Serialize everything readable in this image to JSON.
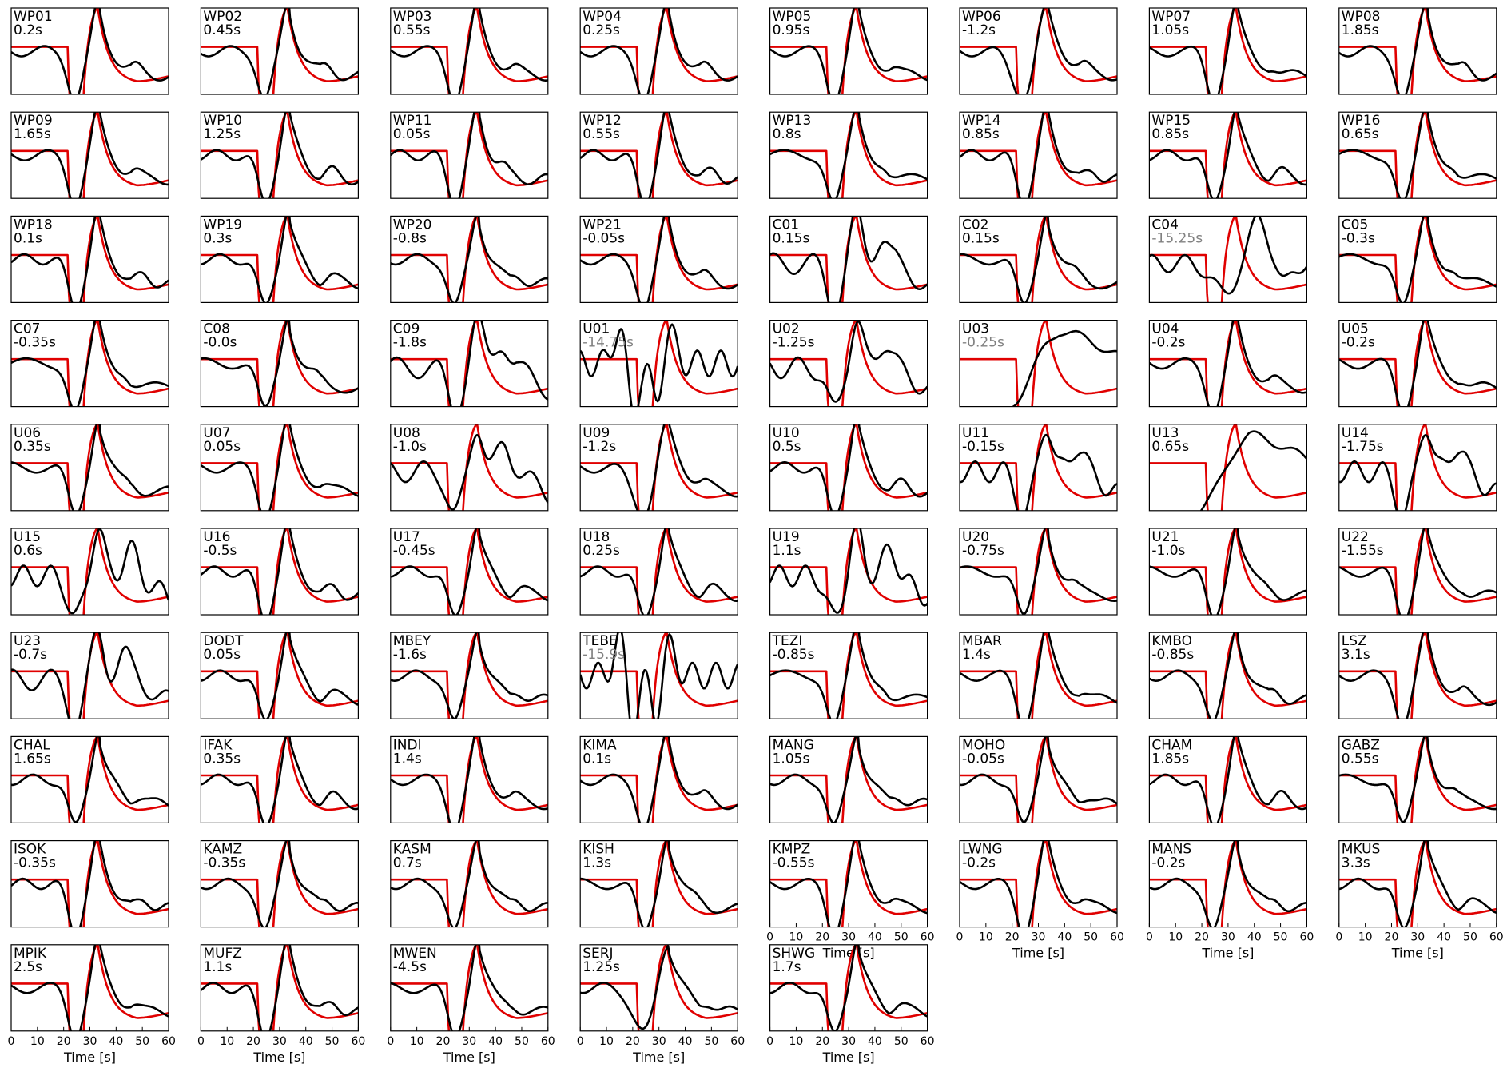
{
  "chart_data": {
    "type": "line",
    "xlabel": "Time [s]",
    "xlim": [
      0,
      60
    ],
    "xticks": [
      0,
      10,
      20,
      30,
      40,
      50,
      60
    ],
    "grid": false,
    "colors": {
      "reference": "#e00000",
      "observed": "#000000",
      "dim_shift": "#808080"
    },
    "panels": [
      {
        "station": "WP01",
        "shift": "0.2s",
        "dim": false,
        "shape": "good",
        "xaxis": false
      },
      {
        "station": "WP02",
        "shift": "0.45s",
        "dim": false,
        "shape": "good",
        "xaxis": false
      },
      {
        "station": "WP03",
        "shift": "0.55s",
        "dim": false,
        "shape": "good",
        "xaxis": false
      },
      {
        "station": "WP04",
        "shift": "0.25s",
        "dim": false,
        "shape": "good",
        "xaxis": false
      },
      {
        "station": "WP05",
        "shift": "0.95s",
        "dim": false,
        "shape": "good",
        "xaxis": false
      },
      {
        "station": "WP06",
        "shift": "-1.2s",
        "dim": false,
        "shape": "wide",
        "xaxis": false
      },
      {
        "station": "WP07",
        "shift": "1.05s",
        "dim": false,
        "shape": "good",
        "xaxis": false
      },
      {
        "station": "WP08",
        "shift": "1.85s",
        "dim": false,
        "shape": "good",
        "xaxis": false
      },
      {
        "station": "WP09",
        "shift": "1.65s",
        "dim": false,
        "shape": "good",
        "xaxis": false
      },
      {
        "station": "WP10",
        "shift": "1.25s",
        "dim": false,
        "shape": "good",
        "xaxis": false
      },
      {
        "station": "WP11",
        "shift": "0.05s",
        "dim": false,
        "shape": "good",
        "xaxis": false
      },
      {
        "station": "WP12",
        "shift": "0.55s",
        "dim": false,
        "shape": "good",
        "xaxis": false
      },
      {
        "station": "WP13",
        "shift": "0.8s",
        "dim": false,
        "shape": "good",
        "xaxis": false
      },
      {
        "station": "WP14",
        "shift": "0.85s",
        "dim": false,
        "shape": "good",
        "xaxis": false
      },
      {
        "station": "WP15",
        "shift": "0.85s",
        "dim": false,
        "shape": "good",
        "xaxis": false
      },
      {
        "station": "WP16",
        "shift": "0.65s",
        "dim": false,
        "shape": "good",
        "xaxis": false
      },
      {
        "station": "WP18",
        "shift": "0.1s",
        "dim": false,
        "shape": "good",
        "xaxis": false
      },
      {
        "station": "WP19",
        "shift": "0.3s",
        "dim": false,
        "shape": "good",
        "xaxis": false
      },
      {
        "station": "WP20",
        "shift": "-0.8s",
        "dim": false,
        "shape": "good",
        "xaxis": false
      },
      {
        "station": "WP21",
        "shift": "-0.05s",
        "dim": false,
        "shape": "good",
        "xaxis": false
      },
      {
        "station": "C01",
        "shift": "0.15s",
        "dim": false,
        "shape": "noisy",
        "xaxis": false
      },
      {
        "station": "C02",
        "shift": "0.15s",
        "dim": false,
        "shape": "good",
        "xaxis": false
      },
      {
        "station": "C04",
        "shift": "-15.25s",
        "dim": true,
        "shape": "late",
        "xaxis": false
      },
      {
        "station": "C05",
        "shift": "-0.3s",
        "dim": false,
        "shape": "good",
        "xaxis": false
      },
      {
        "station": "C07",
        "shift": "-0.35s",
        "dim": false,
        "shape": "good",
        "xaxis": false
      },
      {
        "station": "C08",
        "shift": "-0.0s",
        "dim": false,
        "shape": "good",
        "xaxis": false
      },
      {
        "station": "C09",
        "shift": "-1.8s",
        "dim": false,
        "shape": "noisy",
        "xaxis": false
      },
      {
        "station": "U01",
        "shift": "-14.75s",
        "dim": true,
        "shape": "early",
        "xaxis": false
      },
      {
        "station": "U02",
        "shift": "-1.25s",
        "dim": false,
        "shape": "noisy",
        "xaxis": false
      },
      {
        "station": "U03",
        "shift": "-0.25s",
        "dim": true,
        "shape": "ramp",
        "xaxis": false
      },
      {
        "station": "U04",
        "shift": "-0.2s",
        "dim": false,
        "shape": "good",
        "xaxis": false
      },
      {
        "station": "U05",
        "shift": "-0.2s",
        "dim": false,
        "shape": "good",
        "xaxis": false
      },
      {
        "station": "U06",
        "shift": "0.35s",
        "dim": false,
        "shape": "good",
        "xaxis": false
      },
      {
        "station": "U07",
        "shift": "0.05s",
        "dim": false,
        "shape": "good",
        "xaxis": false
      },
      {
        "station": "U08",
        "shift": "-1.0s",
        "dim": false,
        "shape": "noisy",
        "xaxis": false
      },
      {
        "station": "U09",
        "shift": "-1.2s",
        "dim": false,
        "shape": "wide",
        "xaxis": false
      },
      {
        "station": "U10",
        "shift": "0.5s",
        "dim": false,
        "shape": "good",
        "xaxis": false
      },
      {
        "station": "U11",
        "shift": "-0.15s",
        "dim": false,
        "shape": "noisy",
        "xaxis": false
      },
      {
        "station": "U13",
        "shift": "0.65s",
        "dim": false,
        "shape": "ramp",
        "xaxis": false
      },
      {
        "station": "U14",
        "shift": "-1.75s",
        "dim": false,
        "shape": "noisy",
        "xaxis": false
      },
      {
        "station": "U15",
        "shift": "0.6s",
        "dim": false,
        "shape": "noisy",
        "xaxis": false
      },
      {
        "station": "U16",
        "shift": "-0.5s",
        "dim": false,
        "shape": "good",
        "xaxis": false
      },
      {
        "station": "U17",
        "shift": "-0.45s",
        "dim": false,
        "shape": "good",
        "xaxis": false
      },
      {
        "station": "U18",
        "shift": "0.25s",
        "dim": false,
        "shape": "good",
        "xaxis": false
      },
      {
        "station": "U19",
        "shift": "1.1s",
        "dim": false,
        "shape": "noisy",
        "xaxis": false
      },
      {
        "station": "U20",
        "shift": "-0.75s",
        "dim": false,
        "shape": "good",
        "xaxis": false
      },
      {
        "station": "U21",
        "shift": "-1.0s",
        "dim": false,
        "shape": "good",
        "xaxis": false
      },
      {
        "station": "U22",
        "shift": "-1.55s",
        "dim": false,
        "shape": "good",
        "xaxis": false
      },
      {
        "station": "U23",
        "shift": "-0.7s",
        "dim": false,
        "shape": "noisy",
        "xaxis": false
      },
      {
        "station": "DODT",
        "shift": "0.05s",
        "dim": false,
        "shape": "good",
        "xaxis": false
      },
      {
        "station": "MBEY",
        "shift": "-1.6s",
        "dim": false,
        "shape": "good",
        "xaxis": false
      },
      {
        "station": "TEBE",
        "shift": "-15.9s",
        "dim": true,
        "shape": "early",
        "xaxis": false
      },
      {
        "station": "TEZI",
        "shift": "-0.85s",
        "dim": false,
        "shape": "good",
        "xaxis": false
      },
      {
        "station": "MBAR",
        "shift": "1.4s",
        "dim": false,
        "shape": "good",
        "xaxis": false
      },
      {
        "station": "KMBO",
        "shift": "-0.85s",
        "dim": false,
        "shape": "good",
        "xaxis": false
      },
      {
        "station": "LSZ",
        "shift": "3.1s",
        "dim": false,
        "shape": "good",
        "xaxis": false
      },
      {
        "station": "CHAL",
        "shift": "1.65s",
        "dim": false,
        "shape": "good",
        "xaxis": false
      },
      {
        "station": "IFAK",
        "shift": "0.35s",
        "dim": false,
        "shape": "good",
        "xaxis": false
      },
      {
        "station": "INDI",
        "shift": "1.4s",
        "dim": false,
        "shape": "good",
        "xaxis": false
      },
      {
        "station": "KIMA",
        "shift": "0.1s",
        "dim": false,
        "shape": "good",
        "xaxis": false
      },
      {
        "station": "MANG",
        "shift": "1.05s",
        "dim": false,
        "shape": "good",
        "xaxis": false
      },
      {
        "station": "MOHO",
        "shift": "-0.05s",
        "dim": false,
        "shape": "good",
        "xaxis": false
      },
      {
        "station": "CHAM",
        "shift": "1.85s",
        "dim": false,
        "shape": "good",
        "xaxis": false
      },
      {
        "station": "GABZ",
        "shift": "0.55s",
        "dim": false,
        "shape": "good",
        "xaxis": false
      },
      {
        "station": "ISOK",
        "shift": "-0.35s",
        "dim": false,
        "shape": "good",
        "xaxis": false
      },
      {
        "station": "KAMZ",
        "shift": "-0.35s",
        "dim": false,
        "shape": "good",
        "xaxis": false
      },
      {
        "station": "KASM",
        "shift": "0.7s",
        "dim": false,
        "shape": "good",
        "xaxis": false
      },
      {
        "station": "KISH",
        "shift": "1.3s",
        "dim": false,
        "shape": "good",
        "xaxis": false
      },
      {
        "station": "KMPZ",
        "shift": "-0.55s",
        "dim": false,
        "shape": "good",
        "xaxis": true
      },
      {
        "station": "LWNG",
        "shift": "-0.2s",
        "dim": false,
        "shape": "good",
        "xaxis": true
      },
      {
        "station": "MANS",
        "shift": "-0.2s",
        "dim": false,
        "shape": "good",
        "xaxis": true
      },
      {
        "station": "MKUS",
        "shift": "3.3s",
        "dim": false,
        "shape": "good",
        "xaxis": true
      },
      {
        "station": "MPIK",
        "shift": "2.5s",
        "dim": false,
        "shape": "good",
        "xaxis": true
      },
      {
        "station": "MUFZ",
        "shift": "1.1s",
        "dim": false,
        "shape": "good",
        "xaxis": true
      },
      {
        "station": "MWEN",
        "shift": "-4.5s",
        "dim": false,
        "shape": "good",
        "xaxis": true
      },
      {
        "station": "SERJ",
        "shift": "1.25s",
        "dim": false,
        "shape": "wide",
        "xaxis": true
      },
      {
        "station": "SHWG",
        "shift": "1.7s",
        "dim": false,
        "shape": "good",
        "xaxis": true
      }
    ]
  }
}
